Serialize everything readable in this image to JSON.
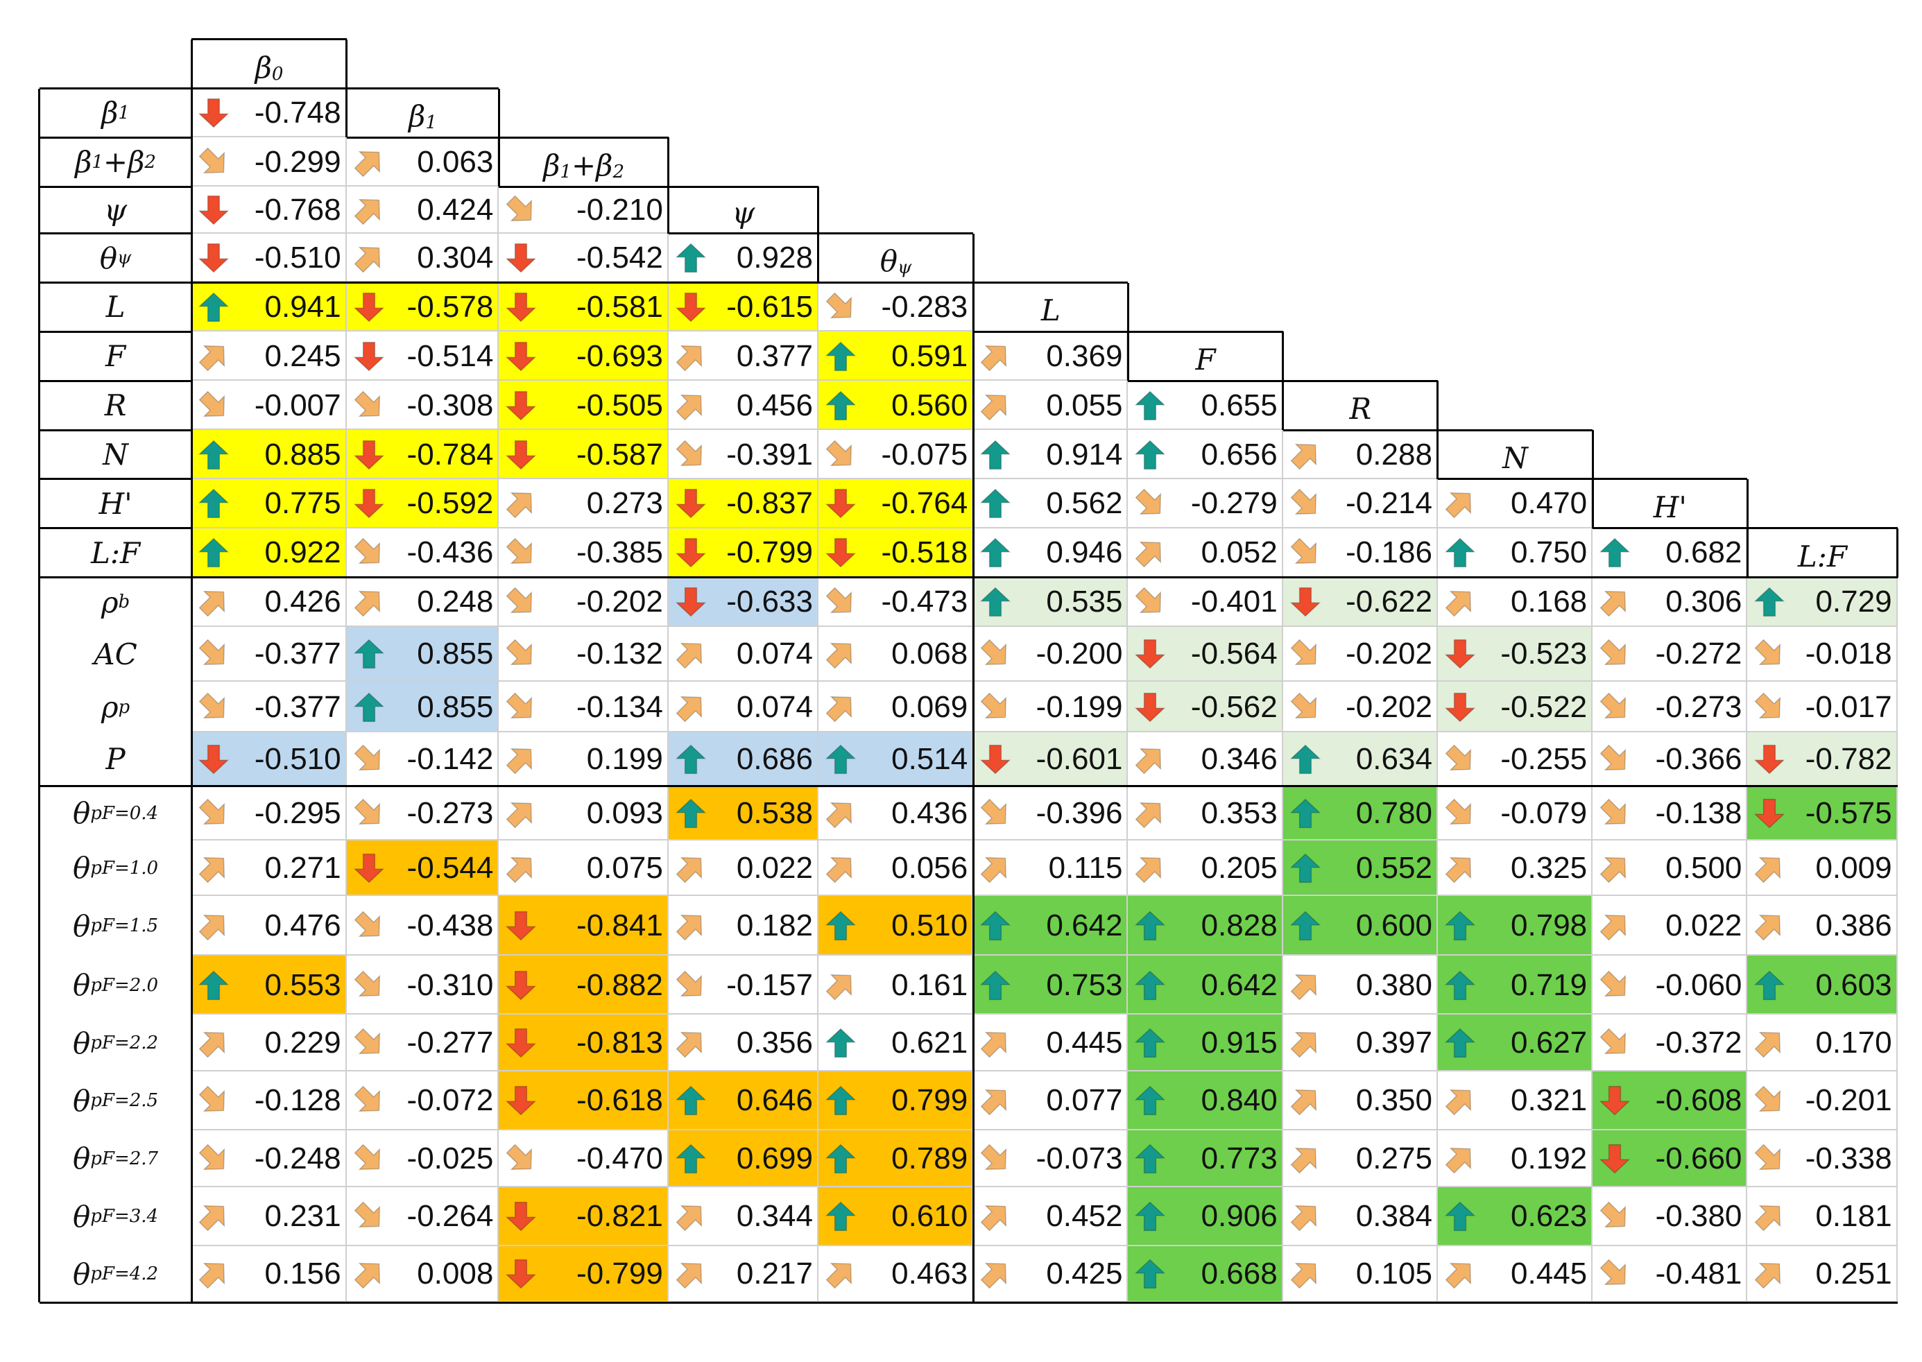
{
  "columns": [
    {
      "key": "b0",
      "base": "β",
      "sub": "0"
    },
    {
      "key": "b1",
      "base": "β",
      "sub": "1"
    },
    {
      "key": "b1b2",
      "base": "β",
      "sub": "1",
      "plus": "+",
      "base2": "β",
      "sub2": "2"
    },
    {
      "key": "psi",
      "base": "ψ",
      "sub": ""
    },
    {
      "key": "theta_psi",
      "base": "θ",
      "sub": "ψ"
    },
    {
      "key": "L",
      "base": "L",
      "sub": ""
    },
    {
      "key": "F",
      "base": "F",
      "sub": ""
    },
    {
      "key": "R",
      "base": "R",
      "sub": ""
    },
    {
      "key": "N",
      "base": "N",
      "sub": ""
    },
    {
      "key": "H",
      "base": "H'",
      "sub": ""
    },
    {
      "key": "LF",
      "base": "L:F",
      "sub": ""
    }
  ],
  "rows": [
    {
      "base": "β",
      "sub": "1",
      "values": [
        "-0.748"
      ],
      "arrows": [
        "down"
      ],
      "fills": [
        ""
      ]
    },
    {
      "base": "β",
      "sub": "1",
      "plus": "+",
      "base2": "β",
      "sub2": "2",
      "values": [
        "-0.299",
        "0.063"
      ],
      "arrows": [
        "se",
        "ne"
      ],
      "fills": [
        "",
        ""
      ]
    },
    {
      "base": "ψ",
      "sub": "",
      "values": [
        "-0.768",
        "0.424",
        "-0.210"
      ],
      "arrows": [
        "down",
        "ne",
        "se"
      ],
      "fills": [
        "",
        "",
        ""
      ]
    },
    {
      "base": "θ",
      "sub": "ψ",
      "values": [
        "-0.510",
        "0.304",
        "-0.542",
        "0.928"
      ],
      "arrows": [
        "down",
        "ne",
        "down",
        "up"
      ],
      "fills": [
        "",
        "",
        "",
        ""
      ]
    },
    {
      "base": "L",
      "sub": "",
      "values": [
        "0.941",
        "-0.578",
        "-0.581",
        "-0.615",
        "-0.283"
      ],
      "arrows": [
        "up",
        "down",
        "down",
        "down",
        "se"
      ],
      "fills": [
        "yellow",
        "yellow",
        "yellow",
        "yellow",
        ""
      ]
    },
    {
      "base": "F",
      "sub": "",
      "values": [
        "0.245",
        "-0.514",
        "-0.693",
        "0.377",
        "0.591",
        "0.369"
      ],
      "arrows": [
        "ne",
        "down",
        "down",
        "ne",
        "up",
        "ne"
      ],
      "fills": [
        "",
        "",
        "yellow",
        "",
        "yellow",
        ""
      ]
    },
    {
      "base": "R",
      "sub": "",
      "values": [
        "-0.007",
        "-0.308",
        "-0.505",
        "0.456",
        "0.560",
        "0.055",
        "0.655"
      ],
      "arrows": [
        "se",
        "se",
        "down",
        "ne",
        "up",
        "ne",
        "up"
      ],
      "fills": [
        "",
        "",
        "yellow",
        "",
        "yellow",
        "",
        ""
      ]
    },
    {
      "base": "N",
      "sub": "",
      "values": [
        "0.885",
        "-0.784",
        "-0.587",
        "-0.391",
        "-0.075",
        "0.914",
        "0.656",
        "0.288"
      ],
      "arrows": [
        "up",
        "down",
        "down",
        "se",
        "se",
        "up",
        "up",
        "ne"
      ],
      "fills": [
        "yellow",
        "yellow",
        "yellow",
        "",
        "",
        "",
        "",
        ""
      ]
    },
    {
      "base": "H'",
      "sub": "",
      "values": [
        "0.775",
        "-0.592",
        "0.273",
        "-0.837",
        "-0.764",
        "0.562",
        "-0.279",
        "-0.214",
        "0.470"
      ],
      "arrows": [
        "up",
        "down",
        "ne",
        "down",
        "down",
        "up",
        "se",
        "se",
        "ne"
      ],
      "fills": [
        "yellow",
        "yellow",
        "",
        "yellow",
        "yellow",
        "",
        "",
        "",
        ""
      ]
    },
    {
      "base": "L:F",
      "sub": "",
      "values": [
        "0.922",
        "-0.436",
        "-0.385",
        "-0.799",
        "-0.518",
        "0.946",
        "0.052",
        "-0.186",
        "0.750",
        "0.682"
      ],
      "arrows": [
        "up",
        "se",
        "se",
        "down",
        "down",
        "up",
        "ne",
        "se",
        "up",
        "up"
      ],
      "fills": [
        "yellow",
        "",
        "",
        "yellow",
        "yellow",
        "",
        "",
        "",
        "",
        ""
      ]
    },
    {
      "base": "ρ",
      "sub": "b",
      "values": [
        "0.426",
        "0.248",
        "-0.202",
        "-0.633",
        "-0.473",
        "0.535",
        "-0.401",
        "-0.622",
        "0.168",
        "0.306",
        "0.729"
      ],
      "arrows": [
        "ne",
        "ne",
        "se",
        "down",
        "se",
        "up",
        "se",
        "down",
        "ne",
        "ne",
        "up"
      ],
      "fills": [
        "",
        "",
        "",
        "blue",
        "",
        "lgreen",
        "",
        "lgreen",
        "",
        "",
        "lgreen"
      ]
    },
    {
      "base": "AC",
      "sub": "",
      "values": [
        "-0.377",
        "0.855",
        "-0.132",
        "0.074",
        "0.068",
        "-0.200",
        "-0.564",
        "-0.202",
        "-0.523",
        "-0.272",
        "-0.018"
      ],
      "arrows": [
        "se",
        "up",
        "se",
        "ne",
        "ne",
        "se",
        "down",
        "se",
        "down",
        "se",
        "se"
      ],
      "fills": [
        "",
        "blue",
        "",
        "",
        "",
        "",
        "lgreen",
        "",
        "lgreen",
        "",
        ""
      ]
    },
    {
      "base": "ρ",
      "sub": "p",
      "values": [
        "-0.377",
        "0.855",
        "-0.134",
        "0.074",
        "0.069",
        "-0.199",
        "-0.562",
        "-0.202",
        "-0.522",
        "-0.273",
        "-0.017"
      ],
      "arrows": [
        "se",
        "up",
        "se",
        "ne",
        "ne",
        "se",
        "down",
        "se",
        "down",
        "se",
        "se"
      ],
      "fills": [
        "",
        "blue",
        "",
        "",
        "",
        "",
        "lgreen",
        "",
        "lgreen",
        "",
        ""
      ]
    },
    {
      "base": "P",
      "sub": "",
      "values": [
        "-0.510",
        "-0.142",
        "0.199",
        "0.686",
        "0.514",
        "-0.601",
        "0.346",
        "0.634",
        "-0.255",
        "-0.366",
        "-0.782"
      ],
      "arrows": [
        "down",
        "se",
        "ne",
        "up",
        "up",
        "down",
        "ne",
        "up",
        "se",
        "se",
        "down"
      ],
      "fills": [
        "blue",
        "",
        "",
        "blue",
        "blue",
        "lgreen",
        "",
        "lgreen",
        "",
        "",
        "lgreen"
      ]
    },
    {
      "base": "θ",
      "sub": "pF=0.4",
      "values": [
        "-0.295",
        "-0.273",
        "0.093",
        "0.538",
        "0.436",
        "-0.396",
        "0.353",
        "0.780",
        "-0.079",
        "-0.138",
        "-0.575"
      ],
      "arrows": [
        "se",
        "se",
        "ne",
        "up",
        "ne",
        "se",
        "ne",
        "up",
        "se",
        "se",
        "down"
      ],
      "fills": [
        "",
        "",
        "",
        "orange",
        "",
        "",
        "",
        "green",
        "",
        "",
        "green"
      ]
    },
    {
      "base": "θ",
      "sub": "pF=1.0",
      "values": [
        "0.271",
        "-0.544",
        "0.075",
        "0.022",
        "0.056",
        "0.115",
        "0.205",
        "0.552",
        "0.325",
        "0.500",
        "0.009"
      ],
      "arrows": [
        "ne",
        "down",
        "ne",
        "ne",
        "ne",
        "ne",
        "ne",
        "up",
        "ne",
        "ne",
        "ne"
      ],
      "fills": [
        "",
        "orange",
        "",
        "",
        "",
        "",
        "",
        "green",
        "",
        "",
        ""
      ]
    },
    {
      "base": "θ",
      "sub": "pF=1.5",
      "values": [
        "0.476",
        "-0.438",
        "-0.841",
        "0.182",
        "0.510",
        "0.642",
        "0.828",
        "0.600",
        "0.798",
        "0.022",
        "0.386"
      ],
      "arrows": [
        "ne",
        "se",
        "down",
        "ne",
        "up",
        "up",
        "up",
        "up",
        "up",
        "ne",
        "ne"
      ],
      "fills": [
        "",
        "",
        "orange",
        "",
        "orange",
        "green",
        "green",
        "green",
        "green",
        "",
        ""
      ]
    },
    {
      "base": "θ",
      "sub": "pF=2.0",
      "values": [
        "0.553",
        "-0.310",
        "-0.882",
        "-0.157",
        "0.161",
        "0.753",
        "0.642",
        "0.380",
        "0.719",
        "-0.060",
        "0.603"
      ],
      "arrows": [
        "up",
        "se",
        "down",
        "se",
        "ne",
        "up",
        "up",
        "ne",
        "up",
        "se",
        "up"
      ],
      "fills": [
        "orange",
        "",
        "orange",
        "",
        "",
        "green",
        "green",
        "",
        "green",
        "",
        "green"
      ]
    },
    {
      "base": "θ",
      "sub": "pF=2.2",
      "values": [
        "0.229",
        "-0.277",
        "-0.813",
        "0.356",
        "0.621",
        "0.445",
        "0.915",
        "0.397",
        "0.627",
        "-0.372",
        "0.170"
      ],
      "arrows": [
        "ne",
        "se",
        "down",
        "ne",
        "up",
        "ne",
        "up",
        "ne",
        "up",
        "se",
        "ne"
      ],
      "fills": [
        "",
        "",
        "orange",
        "",
        "",
        "",
        "green",
        "",
        "green",
        "",
        ""
      ]
    },
    {
      "base": "θ",
      "sub": "pF=2.5",
      "values": [
        "-0.128",
        "-0.072",
        "-0.618",
        "0.646",
        "0.799",
        "0.077",
        "0.840",
        "0.350",
        "0.321",
        "-0.608",
        "-0.201"
      ],
      "arrows": [
        "se",
        "se",
        "down",
        "up",
        "up",
        "ne",
        "up",
        "ne",
        "ne",
        "down",
        "se"
      ],
      "fills": [
        "",
        "",
        "orange",
        "orange",
        "orange",
        "",
        "green",
        "",
        "",
        "green",
        ""
      ]
    },
    {
      "base": "θ",
      "sub": "pF=2.7",
      "values": [
        "-0.248",
        "-0.025",
        "-0.470",
        "0.699",
        "0.789",
        "-0.073",
        "0.773",
        "0.275",
        "0.192",
        "-0.660",
        "-0.338"
      ],
      "arrows": [
        "se",
        "se",
        "se",
        "up",
        "up",
        "se",
        "up",
        "ne",
        "ne",
        "down",
        "se"
      ],
      "fills": [
        "",
        "",
        "",
        "orange",
        "orange",
        "",
        "green",
        "",
        "",
        "green",
        ""
      ]
    },
    {
      "base": "θ",
      "sub": "pF=3.4",
      "values": [
        "0.231",
        "-0.264",
        "-0.821",
        "0.344",
        "0.610",
        "0.452",
        "0.906",
        "0.384",
        "0.623",
        "-0.380",
        "0.181"
      ],
      "arrows": [
        "ne",
        "se",
        "down",
        "ne",
        "up",
        "ne",
        "up",
        "ne",
        "up",
        "se",
        "ne"
      ],
      "fills": [
        "",
        "",
        "orange",
        "",
        "orange",
        "",
        "green",
        "",
        "green",
        "",
        ""
      ]
    },
    {
      "base": "θ",
      "sub": "pF=4.2",
      "values": [
        "0.156",
        "0.008",
        "-0.799",
        "0.217",
        "0.463",
        "0.425",
        "0.668",
        "0.105",
        "0.445",
        "-0.481",
        "0.251"
      ],
      "arrows": [
        "ne",
        "ne",
        "down",
        "ne",
        "ne",
        "ne",
        "up",
        "ne",
        "ne",
        "se",
        "ne"
      ],
      "fills": [
        "",
        "",
        "orange",
        "",
        "",
        "",
        "green",
        "",
        "",
        "",
        ""
      ]
    }
  ],
  "colors": {
    "yellow": "#ffff00",
    "blue": "#bdd7ee",
    "lgreen": "#e2efda",
    "orange": "#ffc000",
    "green": "#6dcf4b",
    "arrow_up": "#139a8c",
    "arrow_down": "#ee4c2c",
    "arrow_diag": "#f4b266"
  }
}
